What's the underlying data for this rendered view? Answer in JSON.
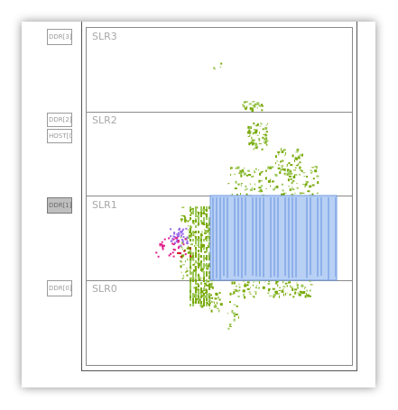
{
  "regions": [
    {
      "id": "slr3",
      "label": "SLR3"
    },
    {
      "id": "slr2",
      "label": "SLR2"
    },
    {
      "id": "slr1",
      "label": "SLR1"
    },
    {
      "id": "slr0",
      "label": "SLR0"
    }
  ],
  "side_labels": [
    {
      "id": "ddr-3",
      "label": "DDR[3]",
      "selected": false
    },
    {
      "id": "ddr-2",
      "label": "DDR[2]",
      "selected": false
    },
    {
      "id": "host",
      "label": "HOST[0]",
      "selected": false
    },
    {
      "id": "ddr-1",
      "label": "DDR[1]",
      "selected": true
    },
    {
      "id": "ddr-0",
      "label": "DDR[0]",
      "selected": false
    }
  ],
  "colors": {
    "green": "#7aaa0a",
    "green_light": "#9cc85a",
    "blue_fill": "#b8d0f4",
    "blue_stripe": "#8eb0ea",
    "purple": "#9a6ae8",
    "magenta": "#e0208c",
    "red": "#d01020"
  }
}
